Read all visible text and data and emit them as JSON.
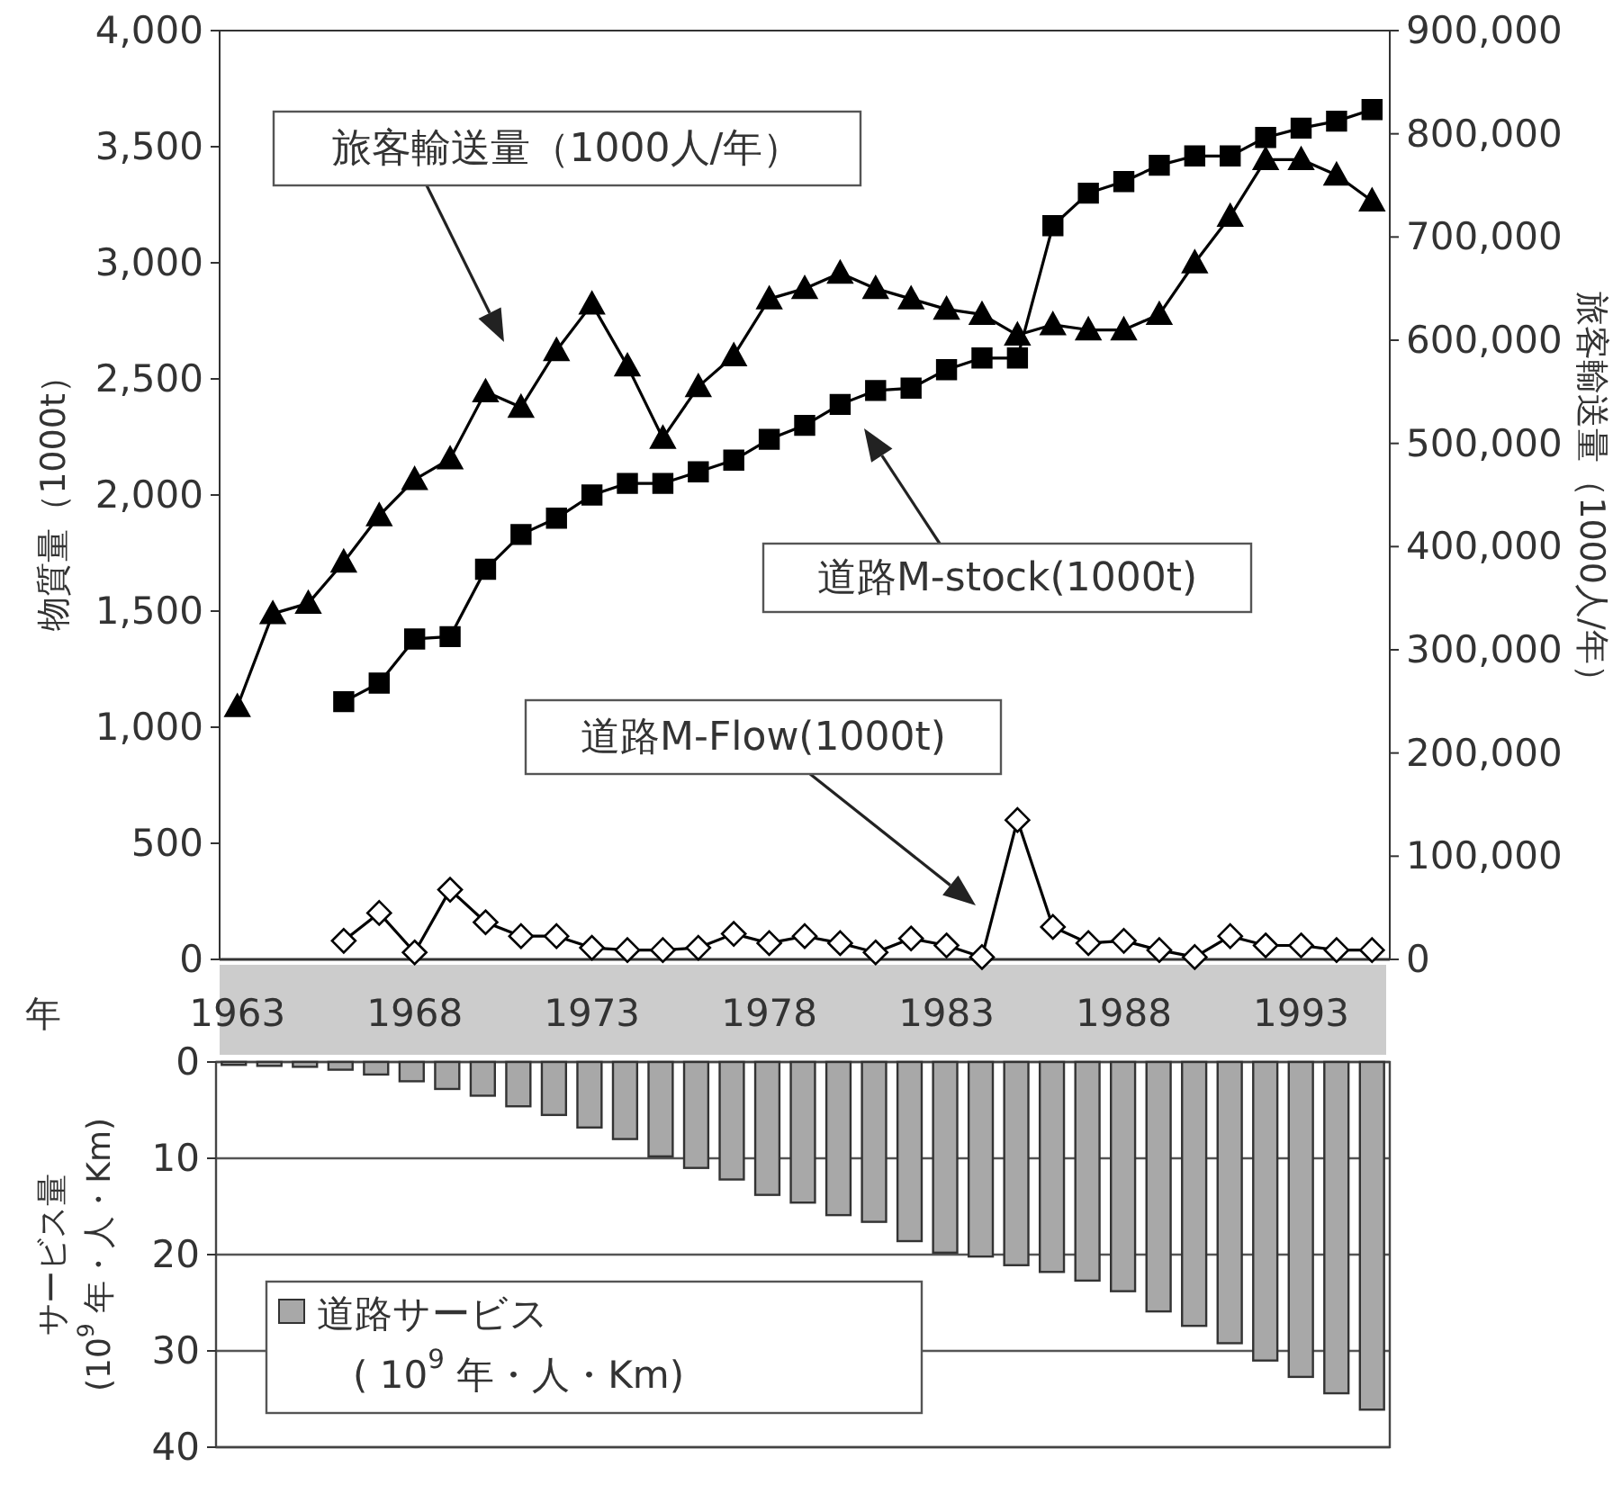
{
  "chart_data": [
    {
      "type": "line",
      "xlabel": "年",
      "ylabel": "物質量（1000t）",
      "y2label": "旅客輸送量（1000人/年）",
      "categories": [
        "1963",
        null,
        null,
        null,
        null,
        "1968",
        null,
        null,
        null,
        null,
        "1973",
        null,
        null,
        null,
        null,
        "1978",
        null,
        null,
        null,
        null,
        "1983",
        null,
        null,
        null,
        null,
        "1988",
        null,
        null,
        null,
        null,
        "1993",
        null,
        null
      ],
      "ylim": [
        0,
        4000
      ],
      "yticks": [
        0,
        500,
        {
          "value": 1000,
          "label": "1,000"
        },
        {
          "value": 1500,
          "label": "1,500"
        },
        {
          "value": 2000,
          "label": "2,000"
        },
        {
          "value": 2500,
          "label": "2,500"
        },
        {
          "value": 3000,
          "label": "3,000"
        },
        {
          "value": 3500,
          "label": "3,500"
        },
        {
          "value": 4000,
          "label": "4,000"
        }
      ],
      "y2lim": [
        0,
        900000
      ],
      "y2ticks": [
        0,
        {
          "value": 100000,
          "label": "100,000"
        },
        {
          "value": 200000,
          "label": "200,000"
        },
        {
          "value": 300000,
          "label": "300,000"
        },
        {
          "value": 400000,
          "label": "400,000"
        },
        {
          "value": 500000,
          "label": "500,000"
        },
        {
          "value": 600000,
          "label": "600,000"
        },
        {
          "value": 700000,
          "label": "700,000"
        },
        {
          "value": 800000,
          "label": "800,000"
        },
        {
          "value": 900000,
          "label": "900,000"
        }
      ],
      "series": [
        {
          "name": "旅客輸送量（1000人/年）",
          "color": "#000000",
          "axis": "y2",
          "marker": "triangle",
          "values": [
            245000,
            335000,
            345000,
            385000,
            430000,
            465000,
            485000,
            550000,
            535000,
            590000,
            635000,
            575000,
            505000,
            555000,
            585000,
            640000,
            650000,
            665000,
            650000,
            640000,
            630000,
            625000,
            605000,
            615000,
            610000,
            610000,
            625000,
            675000,
            720000,
            775000,
            775000,
            760000,
            735000
          ]
        },
        {
          "name": "道路M-stock(1000t)",
          "color": "#000000",
          "marker": "square",
          "values": [
            null,
            null,
            null,
            1110,
            1190,
            1380,
            1390,
            1680,
            1830,
            1900,
            2000,
            2050,
            2050,
            2100,
            2150,
            2240,
            2300,
            2390,
            2450,
            2460,
            2540,
            2590,
            2590,
            3160,
            3300,
            3350,
            3420,
            3460,
            3460,
            3540,
            3580,
            3610,
            3660
          ]
        },
        {
          "name": "道路M-Flow(1000t)",
          "color": "#000000",
          "marker": "diamond",
          "values": [
            null,
            null,
            null,
            80,
            200,
            30,
            300,
            160,
            100,
            100,
            50,
            40,
            40,
            50,
            110,
            70,
            100,
            70,
            30,
            90,
            60,
            10,
            600,
            140,
            70,
            80,
            40,
            10,
            100,
            60,
            60,
            40,
            40
          ]
        }
      ]
    },
    {
      "type": "bar",
      "ylabel": "サービス量\n(10$^{9}$ 年・人・Km)",
      "categories": [
        "1963",
        null,
        null,
        null,
        null,
        "1968",
        null,
        null,
        null,
        null,
        "1973",
        null,
        null,
        null,
        null,
        "1978",
        null,
        null,
        null,
        null,
        "1983",
        null,
        null,
        null,
        null,
        "1988",
        null,
        null,
        null,
        null,
        "1993",
        null,
        null
      ],
      "tick_labels": "y",
      "ylim": [
        40,
        0
      ],
      "yticks": [
        0,
        10,
        20,
        30,
        40
      ],
      "grid": "y",
      "legend": "bottom left",
      "series": [
        {
          "name": "道路サービス\n( 10$^{9}$  年・人・Km)",
          "color": "#a8a8a8",
          "values": [
            0.3,
            0.4,
            0.5,
            0.8,
            1.3,
            2.0,
            2.8,
            3.5,
            4.6,
            5.5,
            6.8,
            8.0,
            9.8,
            11.0,
            12.2,
            13.8,
            14.6,
            15.9,
            16.6,
            18.6,
            19.8,
            20.2,
            21.1,
            21.8,
            22.7,
            23.8,
            25.9,
            27.4,
            29.2,
            31.0,
            32.7,
            34.4,
            36.1
          ]
        }
      ]
    }
  ]
}
